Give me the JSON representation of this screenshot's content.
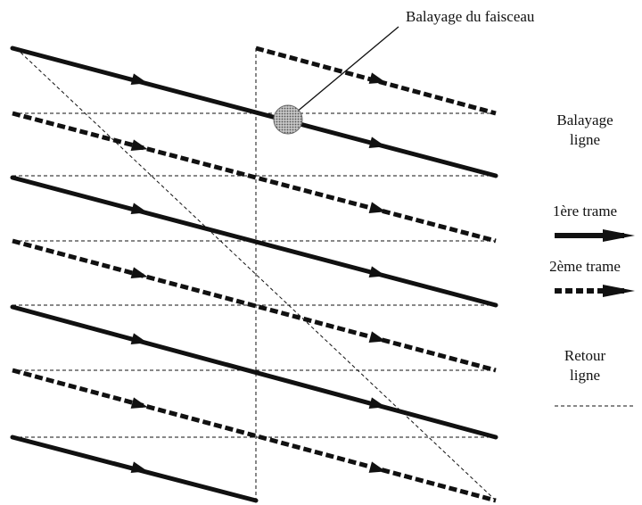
{
  "labels": {
    "beam_scan": "Balayage du faisceau",
    "line_scan_1": "Balayage",
    "line_scan_2": "ligne",
    "field_1": "1ère trame",
    "field_2": "2ème trame",
    "line_return_1": "Retour",
    "line_return_2": "ligne"
  },
  "legend": {
    "solid_field": "1ère trame",
    "dashed_field": "2ème trame",
    "return_line": "Retour ligne"
  },
  "colors": {
    "stroke": "#111111",
    "beam_spot": "#9a9a9a"
  }
}
